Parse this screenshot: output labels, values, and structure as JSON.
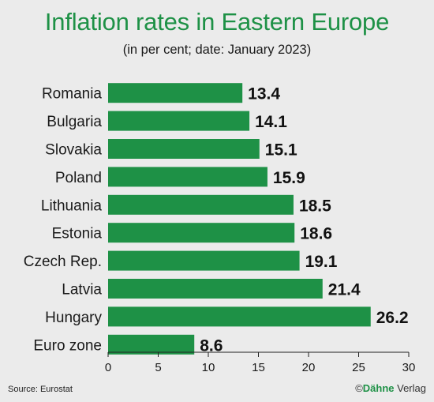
{
  "title": "Inflation rates in Eastern Europe",
  "subtitle": "(in per cent; date: January 2023)",
  "source": "Source: Eurostat",
  "brand": {
    "copyright": "©",
    "name_bold": "Dähne",
    "name_rest": " Verlag"
  },
  "colors": {
    "bar": "#1e9146",
    "title": "#1e9146",
    "background": "#ebebeb",
    "axis": "#222222"
  },
  "chart_data": {
    "type": "bar",
    "orientation": "horizontal",
    "categories": [
      "Romania",
      "Bulgaria",
      "Slovakia",
      "Poland",
      "Lithuania",
      "Estonia",
      "Czech Rep.",
      "Latvia",
      "Hungary",
      "Euro zone"
    ],
    "values": [
      13.4,
      14.1,
      15.1,
      15.9,
      18.5,
      18.6,
      19.1,
      21.4,
      26.2,
      8.6
    ],
    "value_labels": [
      "13.4",
      "14.1",
      "15.1",
      "15.9",
      "18.5",
      "18.6",
      "19.1",
      "21.4",
      "26.2",
      "8.6"
    ],
    "xlim": [
      0,
      30
    ],
    "xticks": [
      0,
      5,
      10,
      15,
      20,
      25,
      30
    ],
    "grid": false,
    "legend": "none"
  }
}
